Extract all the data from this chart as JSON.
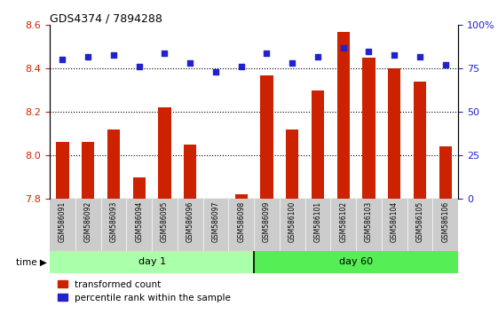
{
  "title": "GDS4374 / 7894288",
  "samples": [
    "GSM586091",
    "GSM586092",
    "GSM586093",
    "GSM586094",
    "GSM586095",
    "GSM586096",
    "GSM586097",
    "GSM586098",
    "GSM586099",
    "GSM586100",
    "GSM586101",
    "GSM586102",
    "GSM586103",
    "GSM586104",
    "GSM586105",
    "GSM586106"
  ],
  "red_values": [
    8.06,
    8.06,
    8.12,
    7.9,
    8.22,
    8.05,
    7.8,
    7.82,
    8.37,
    8.12,
    8.3,
    8.57,
    8.45,
    8.4,
    8.34,
    8.04
  ],
  "blue_values": [
    80,
    82,
    83,
    76,
    84,
    78,
    73,
    76,
    84,
    78,
    82,
    87,
    85,
    83,
    82,
    77
  ],
  "day1_count": 8,
  "day60_count": 8,
  "day1_label": "day 1",
  "day60_label": "day 60",
  "legend1": "transformed count",
  "legend2": "percentile rank within the sample",
  "ylim_left": [
    7.8,
    8.6
  ],
  "ylim_right": [
    0,
    100
  ],
  "yticks_left": [
    7.8,
    8.0,
    8.2,
    8.4,
    8.6
  ],
  "yticks_right": [
    0,
    25,
    50,
    75,
    100
  ],
  "red_color": "#cc2200",
  "blue_color": "#2222cc",
  "day1_color": "#aaffaa",
  "day60_color": "#55ee55",
  "bar_base": 7.8,
  "tick_bg_color": "#cccccc",
  "bg_color": "#ffffff"
}
